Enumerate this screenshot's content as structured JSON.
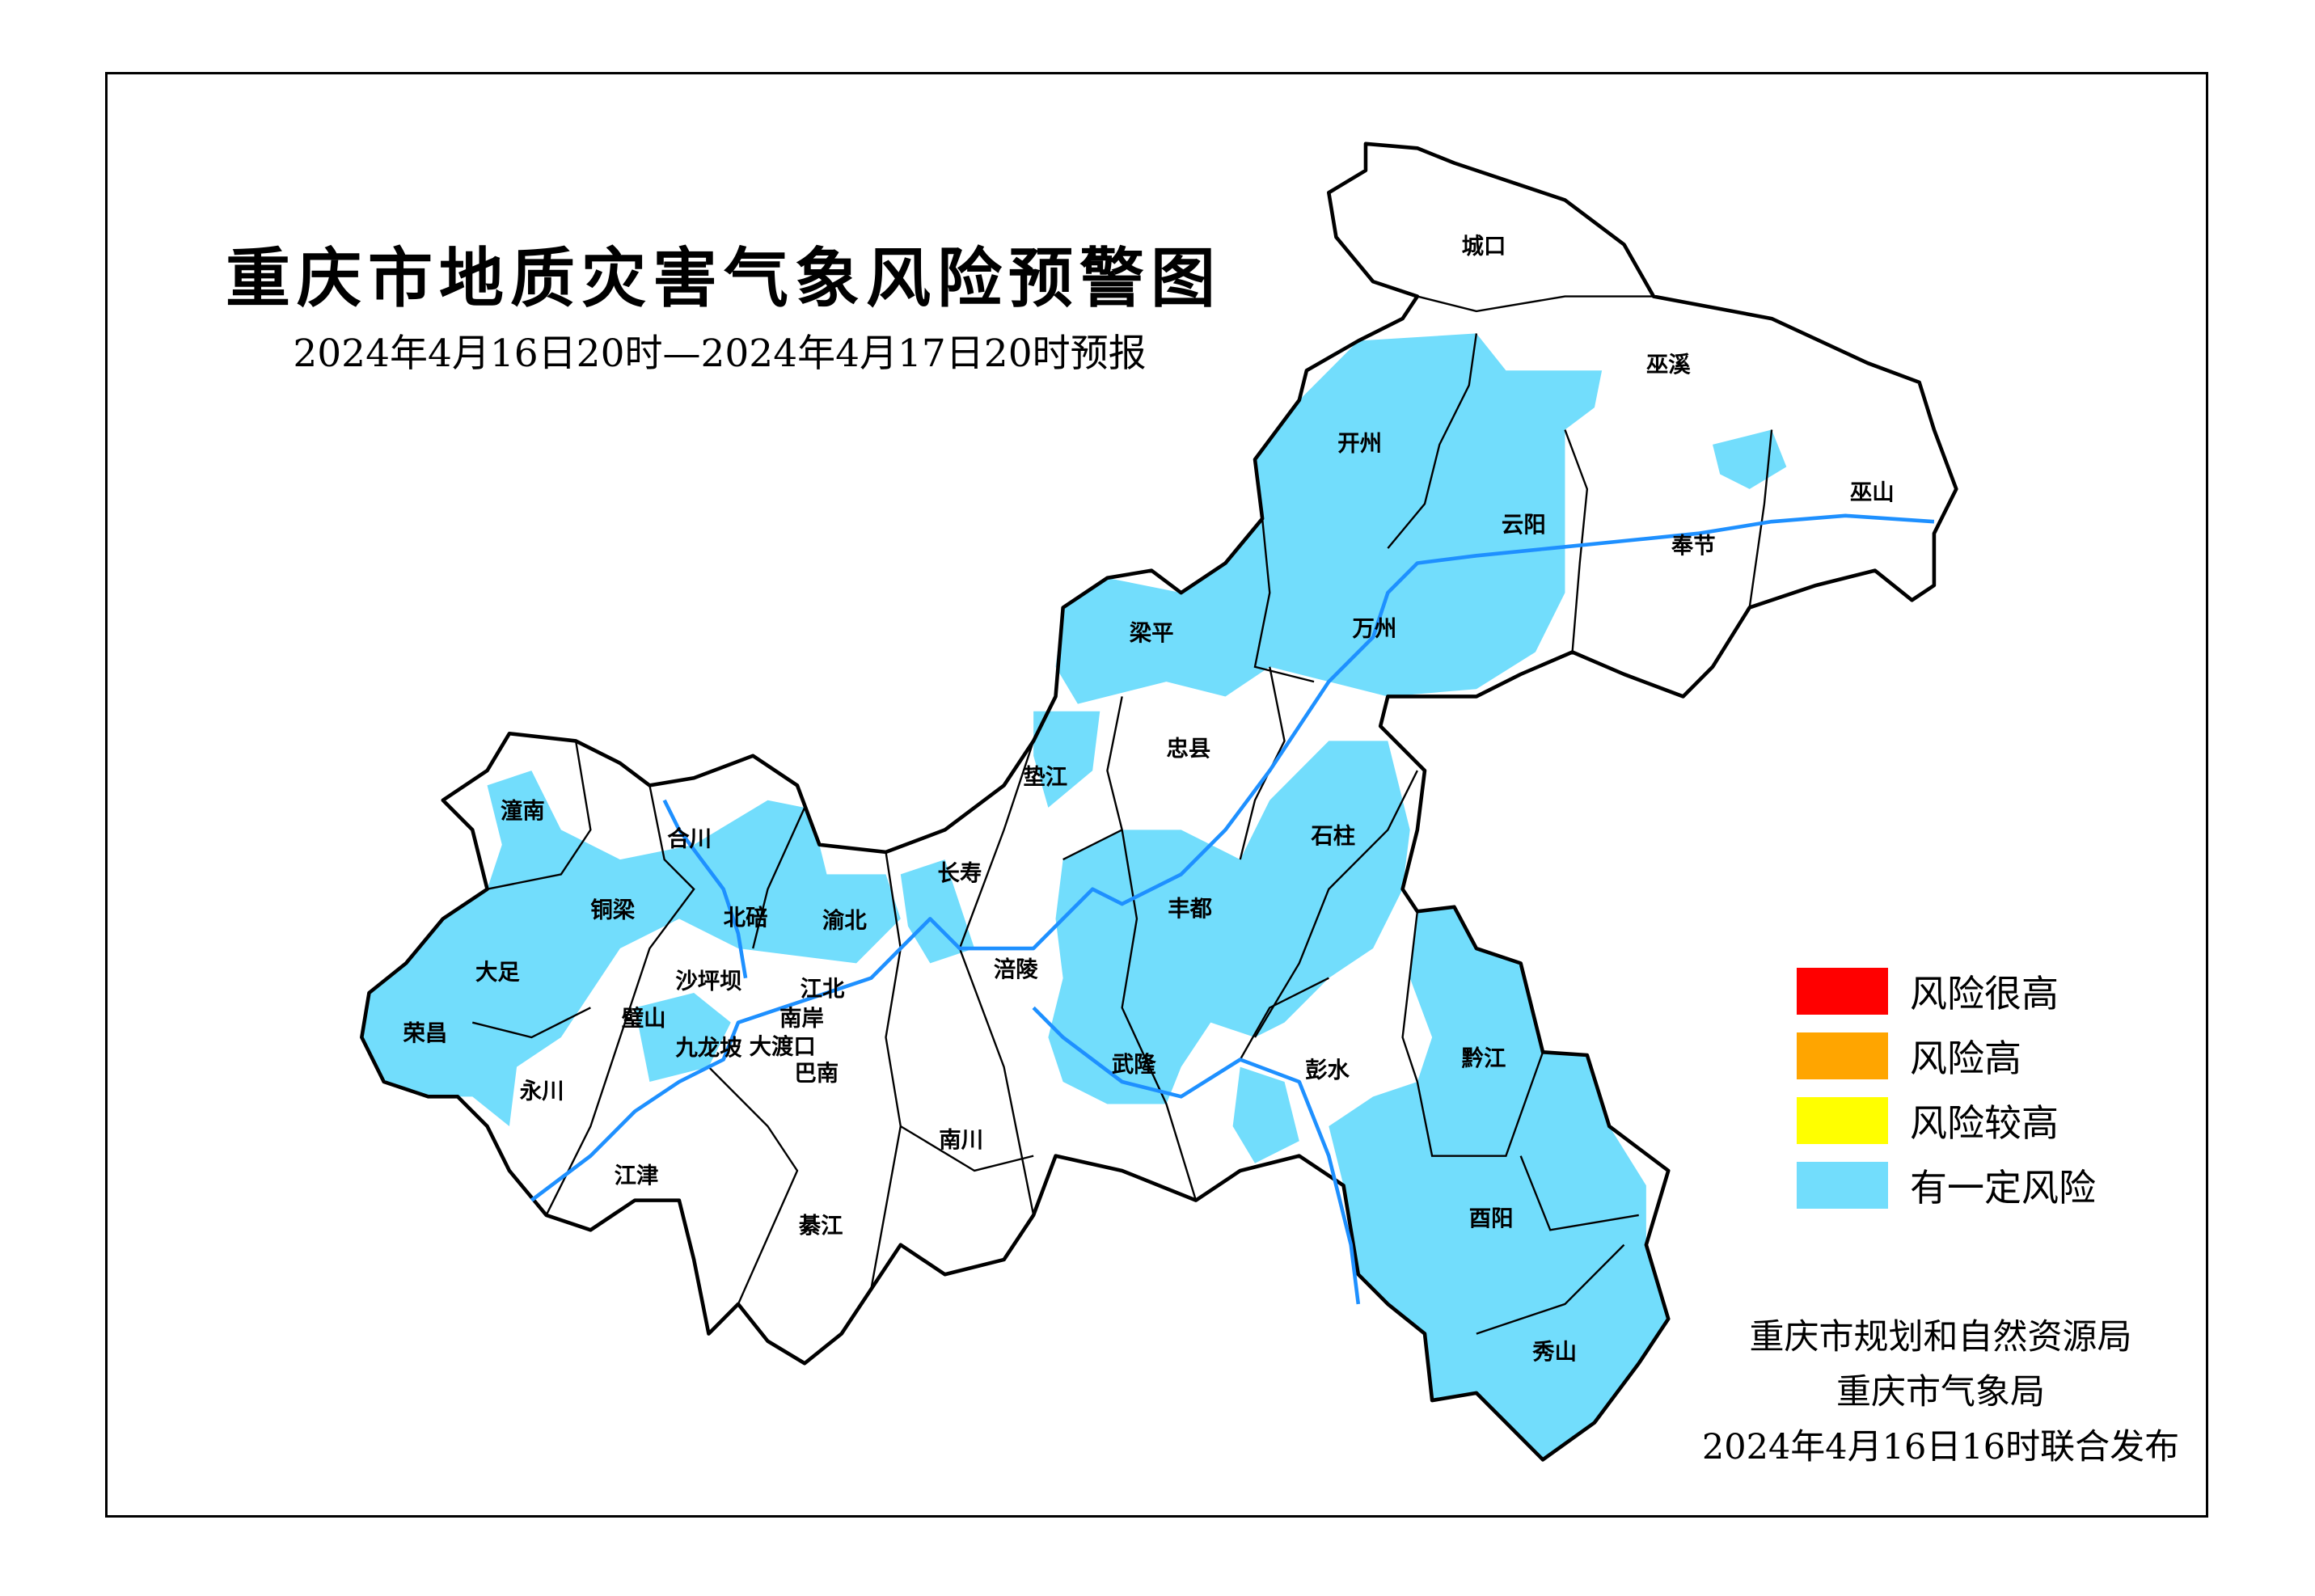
{
  "title": "重庆市地质灾害气象风险预警图",
  "subtitle": "2024年4月16日20时—2024年4月17日20时预报",
  "legend": [
    {
      "label": "风险很高",
      "color": "#FF0000"
    },
    {
      "label": "风险高",
      "color": "#FFA500"
    },
    {
      "label": "风险较高",
      "color": "#FFFF00"
    },
    {
      "label": "有一定风险",
      "color": "#72DDFC"
    }
  ],
  "footer": {
    "line1": "重庆市规划和自然资源局",
    "line2": "重庆市气象局",
    "line3": "2024年4月16日16时联合发布"
  },
  "colors": {
    "risk_area": "#72DDFC",
    "river": "#1E90FF",
    "boundary": "#000000"
  },
  "districts": {
    "chengkou": "城口",
    "wuxi": "巫溪",
    "kaizhou": "开州",
    "yunyang": "云阳",
    "wushan": "巫山",
    "fengjie": "奉节",
    "liangping": "梁平",
    "wanzhou": "万州",
    "zhongxian": "忠县",
    "dianjiang": "垫江",
    "shizhu": "石柱",
    "tongnan": "潼南",
    "hechuan": "合川",
    "tongliang": "铜梁",
    "beibei": "北碚",
    "yubei": "渝北",
    "changshou": "长寿",
    "fengdu": "丰都",
    "dazu": "大足",
    "shapingba": "沙坪坝",
    "jiangbei": "江北",
    "fuling": "涪陵",
    "rongchang": "荣昌",
    "bishan": "璧山",
    "nanan": "南岸",
    "jiulongpo": "九龙坡",
    "dadukou": "大渡口",
    "banan": "巴南",
    "wulong": "武隆",
    "pengshui": "彭水",
    "qianjiang": "黔江",
    "yongchuan": "永川",
    "nanchuan": "南川",
    "jiangjin": "江津",
    "qijiang": "綦江",
    "youyang": "酉阳",
    "xiushan": "秀山"
  }
}
